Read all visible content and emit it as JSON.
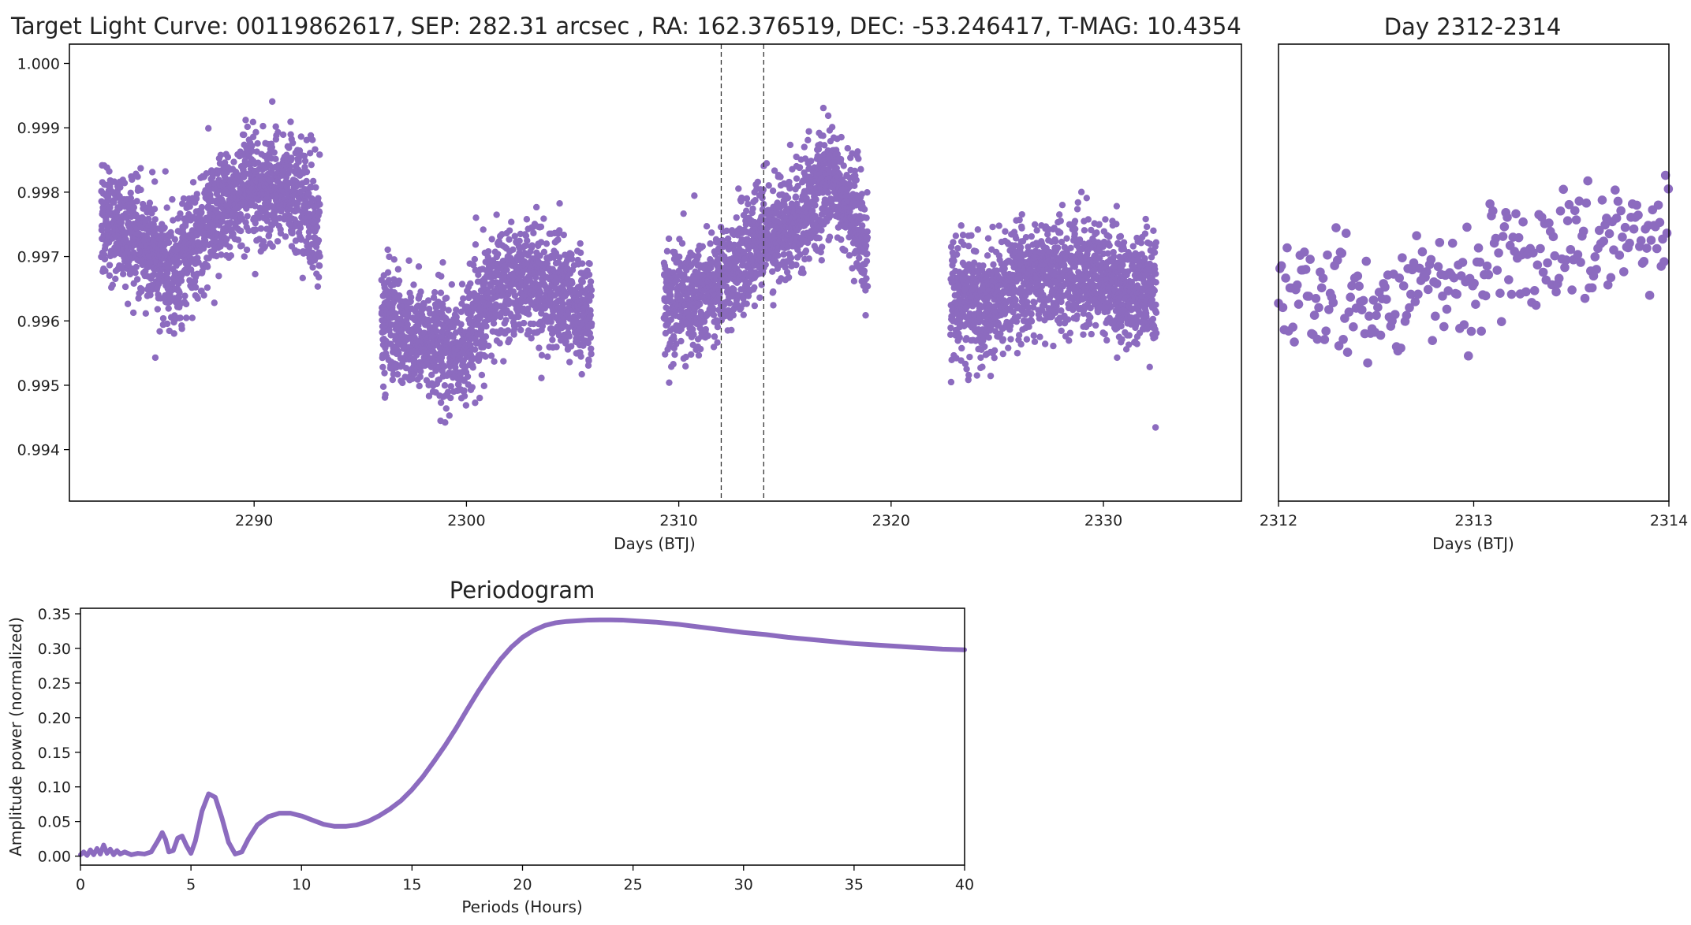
{
  "figure": {
    "main_title": "Target Light Curve: 00119862617, SEP: 282.31 arcsec , RA: 162.376519, DEC: -53.246417, T-MAG: 10.4354",
    "point_color": "#8c6bbf",
    "line_color": "#8c6bbf"
  },
  "chart_data": [
    {
      "id": "light_curve",
      "type": "scatter",
      "title": "Target Light Curve: 00119862617, SEP: 282.31 arcsec , RA: 162.376519, DEC: -53.246417, T-MAG: 10.4354",
      "xlabel": "Days (BTJ)",
      "ylabel": "",
      "xlim": [
        2281.3,
        2336.5
      ],
      "ylim": [
        0.9932,
        1.0003
      ],
      "xticks": [
        2290,
        2300,
        2310,
        2320,
        2330
      ],
      "xtick_labels": [
        "2290",
        "2300",
        "2310",
        "2320",
        "2330"
      ],
      "yticks": [
        0.994,
        0.995,
        0.996,
        0.997,
        0.998,
        0.999,
        1.0
      ],
      "ytick_labels": [
        "0.994",
        "0.995",
        "0.996",
        "0.997",
        "0.998",
        "0.999",
        "1.000"
      ],
      "vlines": [
        2312,
        2314
      ],
      "color": "#8c6bbf",
      "series": [
        {
          "segments": [
            {
              "x_start": 2282.8,
              "x_end": 2293.1,
              "trend": [
                [
                  2282.8,
                  0.9977
                ],
                [
                  2284.5,
                  0.9972
                ],
                [
                  2286.2,
                  0.9968
                ],
                [
                  2288.0,
                  0.9976
                ],
                [
                  2289.8,
                  0.998
                ],
                [
                  2291.5,
                  0.9981
                ],
                [
                  2293.1,
                  0.9975
                ]
              ],
              "scatter": 0.00078
            },
            {
              "x_start": 2296.0,
              "x_end": 2305.9,
              "trend": [
                [
                  2296.0,
                  0.996
                ],
                [
                  2298.0,
                  0.9957
                ],
                [
                  2299.8,
                  0.9955
                ],
                [
                  2301.5,
                  0.9966
                ],
                [
                  2303.2,
                  0.9967
                ],
                [
                  2305.0,
                  0.9962
                ],
                [
                  2305.9,
                  0.9961
                ]
              ],
              "scatter": 0.0008
            },
            {
              "x_start": 2309.3,
              "x_end": 2318.9,
              "trend": [
                [
                  2309.3,
                  0.9963
                ],
                [
                  2311.0,
                  0.9964
                ],
                [
                  2312.5,
                  0.9968
                ],
                [
                  2314.0,
                  0.9973
                ],
                [
                  2315.5,
                  0.9976
                ],
                [
                  2317.2,
                  0.9982
                ],
                [
                  2318.9,
                  0.9972
                ]
              ],
              "scatter": 0.00075
            },
            {
              "x_start": 2322.8,
              "x_end": 2332.5,
              "trend": [
                [
                  2322.8,
                  0.9963
                ],
                [
                  2324.5,
                  0.9962
                ],
                [
                  2326.0,
                  0.9966
                ],
                [
                  2327.5,
                  0.9967
                ],
                [
                  2329.0,
                  0.9968
                ],
                [
                  2330.8,
                  0.9965
                ],
                [
                  2332.5,
                  0.9964
                ]
              ],
              "scatter": 0.00078
            }
          ],
          "cadence_days": 0.0067
        }
      ]
    },
    {
      "id": "zoom",
      "type": "scatter",
      "title": "Day 2312-2314",
      "xlabel": "Days (BTJ)",
      "xlim": [
        2312,
        2314
      ],
      "ylim": [
        0.9932,
        1.0003
      ],
      "xticks": [
        2312,
        2313,
        2314
      ],
      "xtick_labels": [
        "2312",
        "2313",
        "2314"
      ],
      "color": "#8c6bbf",
      "series": [
        {
          "segments": [
            {
              "x_start": 2312.0,
              "x_end": 2314.0,
              "trend": [
                [
                  2312.0,
                  0.9965
                ],
                [
                  2312.5,
                  0.9963
                ],
                [
                  2313.0,
                  0.9967
                ],
                [
                  2313.5,
                  0.9972
                ],
                [
                  2314.0,
                  0.9975
                ]
              ],
              "scatter": 0.0007
            }
          ],
          "cadence_days": 0.0067
        }
      ]
    },
    {
      "id": "periodogram",
      "type": "line",
      "title": "Periodogram",
      "xlabel": "Periods (Hours)",
      "ylabel": "Amplitude power (normalized)",
      "xlim": [
        0,
        40
      ],
      "ylim": [
        -0.013,
        0.358
      ],
      "xticks": [
        0,
        5,
        10,
        15,
        20,
        25,
        30,
        35,
        40
      ],
      "xtick_labels": [
        "0",
        "5",
        "10",
        "15",
        "20",
        "25",
        "30",
        "35",
        "40"
      ],
      "yticks": [
        0.0,
        0.05,
        0.1,
        0.15,
        0.2,
        0.25,
        0.3,
        0.35
      ],
      "ytick_labels": [
        "0.00",
        "0.05",
        "0.10",
        "0.15",
        "0.20",
        "0.25",
        "0.30",
        "0.35"
      ],
      "color": "#8c6bbf",
      "series": [
        {
          "x": [
            0,
            0.15,
            0.3,
            0.45,
            0.6,
            0.75,
            0.9,
            1.05,
            1.2,
            1.35,
            1.5,
            1.65,
            1.8,
            2.0,
            2.3,
            2.6,
            2.9,
            3.2,
            3.5,
            3.7,
            3.85,
            4.0,
            4.2,
            4.4,
            4.6,
            4.8,
            5.0,
            5.2,
            5.5,
            5.8,
            6.1,
            6.4,
            6.7,
            7.0,
            7.3,
            7.6,
            8.0,
            8.5,
            9.0,
            9.5,
            10.0,
            10.5,
            11.0,
            11.5,
            12.0,
            12.5,
            13.0,
            13.5,
            14.0,
            14.5,
            15.0,
            15.5,
            16.0,
            16.5,
            17.0,
            17.5,
            18.0,
            18.5,
            19.0,
            19.5,
            20.0,
            20.5,
            21.0,
            21.5,
            22.0,
            22.5,
            23.0,
            23.5,
            24.0,
            24.5,
            25.0,
            26.0,
            27.0,
            28.0,
            29.0,
            30.0,
            31.0,
            32.0,
            33.0,
            34.0,
            35.0,
            36.0,
            37.0,
            38.0,
            39.0,
            40.0
          ],
          "y": [
            0.002,
            0.006,
            0.001,
            0.009,
            0.002,
            0.011,
            0.003,
            0.016,
            0.004,
            0.01,
            0.002,
            0.008,
            0.003,
            0.006,
            0.002,
            0.004,
            0.003,
            0.006,
            0.022,
            0.034,
            0.024,
            0.006,
            0.008,
            0.026,
            0.029,
            0.015,
            0.004,
            0.022,
            0.065,
            0.09,
            0.085,
            0.055,
            0.02,
            0.003,
            0.006,
            0.025,
            0.045,
            0.057,
            0.062,
            0.062,
            0.058,
            0.052,
            0.046,
            0.043,
            0.043,
            0.045,
            0.05,
            0.058,
            0.068,
            0.08,
            0.096,
            0.115,
            0.137,
            0.16,
            0.185,
            0.212,
            0.238,
            0.262,
            0.284,
            0.302,
            0.316,
            0.326,
            0.333,
            0.337,
            0.339,
            0.34,
            0.341,
            0.3412,
            0.3412,
            0.341,
            0.34,
            0.338,
            0.335,
            0.331,
            0.327,
            0.323,
            0.32,
            0.316,
            0.313,
            0.31,
            0.307,
            0.305,
            0.303,
            0.301,
            0.299,
            0.298
          ]
        }
      ]
    }
  ]
}
